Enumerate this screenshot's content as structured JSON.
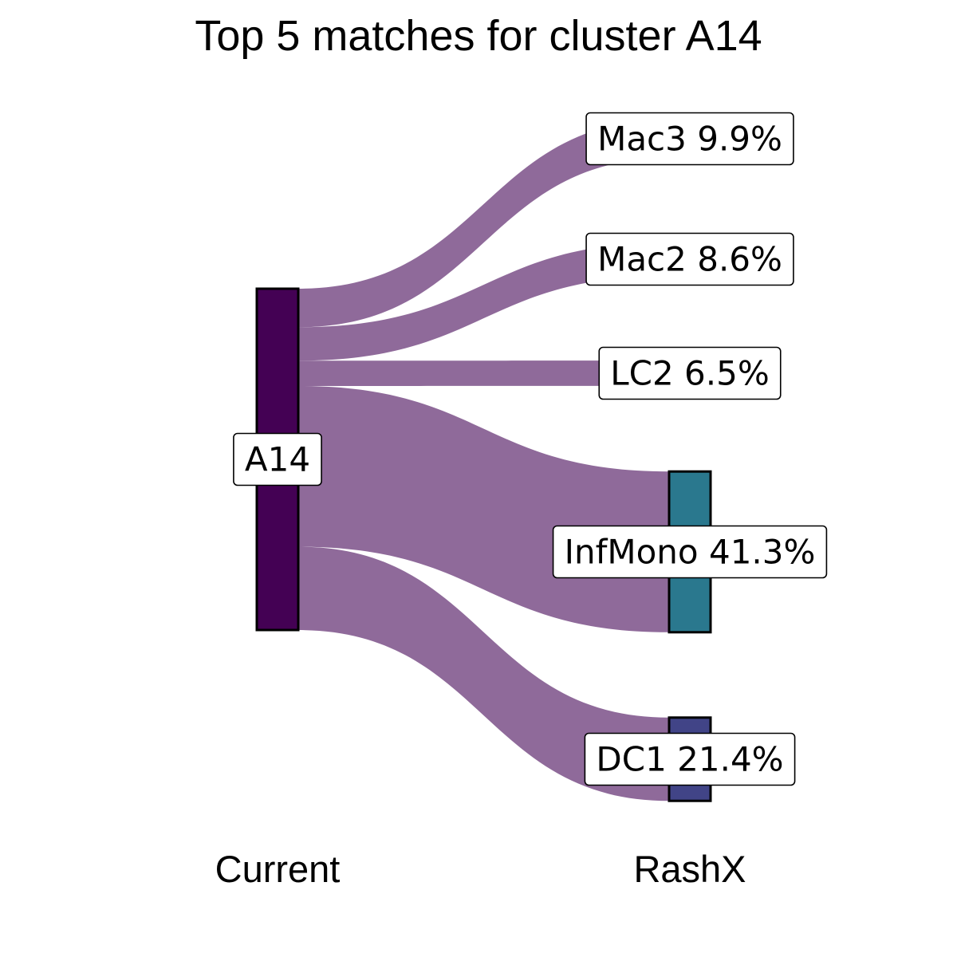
{
  "chart_data": {
    "type": "sankey",
    "title": "Top 5 matches for cluster A14",
    "axes": [
      "Current",
      "RashX"
    ],
    "source": {
      "name": "A14",
      "color": "#440154"
    },
    "link_color": "#8F6A9A",
    "targets": [
      {
        "name": "Mac3",
        "percent": 9.9,
        "label": "Mac3 9.9%",
        "color": null
      },
      {
        "name": "Mac2",
        "percent": 8.6,
        "label": "Mac2 8.6%",
        "color": null
      },
      {
        "name": "LC2",
        "percent": 6.5,
        "label": "LC2 6.5%",
        "color": null
      },
      {
        "name": "InfMono",
        "percent": 41.3,
        "label": "InfMono 41.3%",
        "color": "#2A788E"
      },
      {
        "name": "DC1",
        "percent": 21.4,
        "label": "DC1 21.4%",
        "color": "#414487"
      }
    ]
  }
}
